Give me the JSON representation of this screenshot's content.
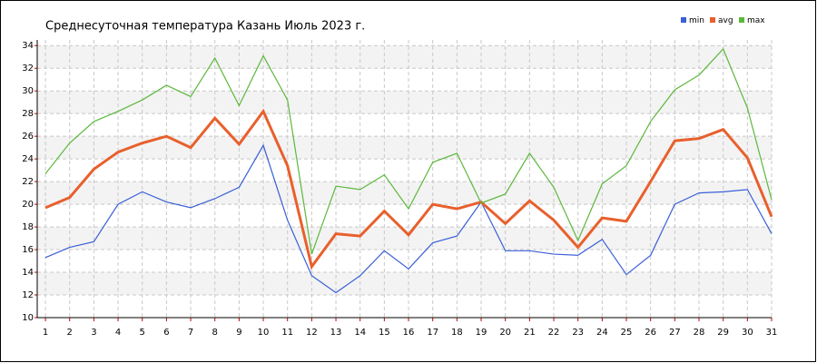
{
  "chart_data": {
    "type": "line",
    "title": "Среднесуточная температура Казань  Июль 2023 г.",
    "x": [
      1,
      2,
      3,
      4,
      5,
      6,
      7,
      8,
      9,
      10,
      11,
      12,
      13,
      14,
      15,
      16,
      17,
      18,
      19,
      20,
      21,
      22,
      23,
      24,
      25,
      26,
      27,
      28,
      29,
      30,
      31
    ],
    "series": [
      {
        "name": "min",
        "color": "#3a5fd6",
        "values": [
          15.3,
          16.2,
          16.7,
          20.0,
          21.1,
          20.2,
          19.7,
          20.5,
          21.5,
          25.2,
          18.6,
          13.7,
          12.2,
          13.7,
          15.9,
          14.3,
          16.6,
          17.2,
          20.2,
          15.9,
          15.9,
          15.6,
          15.5,
          16.9,
          13.8,
          15.5,
          20.0,
          21.0,
          21.1,
          21.3,
          17.4
        ]
      },
      {
        "name": "avg",
        "color": "#e8602c",
        "values": [
          19.7,
          20.6,
          23.1,
          24.6,
          25.4,
          26.0,
          25.0,
          27.6,
          25.3,
          28.2,
          23.4,
          14.5,
          17.4,
          17.2,
          19.4,
          17.3,
          20.0,
          19.6,
          20.2,
          18.3,
          20.3,
          18.6,
          16.2,
          18.8,
          18.5,
          22.0,
          25.6,
          25.8,
          26.6,
          24.1,
          18.9
        ]
      },
      {
        "name": "max",
        "color": "#5cb83c",
        "values": [
          22.7,
          25.4,
          27.3,
          28.2,
          29.2,
          30.5,
          29.5,
          32.9,
          28.7,
          33.1,
          29.2,
          15.6,
          21.6,
          21.3,
          22.6,
          19.6,
          23.7,
          24.5,
          20.1,
          20.9,
          24.5,
          21.5,
          16.8,
          21.8,
          23.4,
          27.3,
          30.1,
          31.4,
          33.7,
          28.5,
          20.4
        ]
      }
    ],
    "xlim": [
      0.66,
      31
    ],
    "xticks": [
      1,
      2,
      3,
      4,
      5,
      6,
      7,
      8,
      9,
      10,
      11,
      12,
      13,
      14,
      15,
      16,
      17,
      18,
      19,
      20,
      21,
      22,
      23,
      24,
      25,
      26,
      27,
      28,
      29,
      30,
      31
    ],
    "ylim": [
      10,
      34.5
    ],
    "yticks": [
      10,
      12,
      14,
      16,
      18,
      20,
      22,
      24,
      26,
      28,
      30,
      32,
      34
    ],
    "grid": true
  }
}
